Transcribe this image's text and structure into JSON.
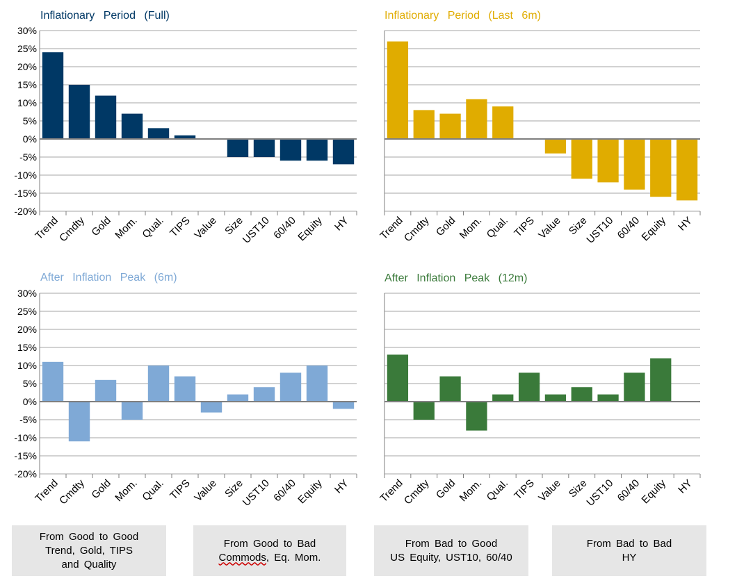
{
  "chart_data": [
    {
      "type": "bar",
      "title": "Inflationary Period (Full)",
      "color": "#003865",
      "categories": [
        "Trend",
        "Cmdty",
        "Gold",
        "Mom.",
        "Qual.",
        "TIPS",
        "Value",
        "Size",
        "UST10",
        "60/40",
        "Equity",
        "HY"
      ],
      "values": [
        24,
        15,
        12,
        7,
        3,
        1,
        0,
        -5,
        -5,
        -6,
        -6,
        -7
      ],
      "ylim": [
        -20,
        30
      ],
      "yticks": [
        "-20%",
        "-15%",
        "-10%",
        "-5%",
        "0%",
        "5%",
        "10%",
        "15%",
        "20%",
        "25%",
        "30%"
      ],
      "show_yticks": true
    },
    {
      "type": "bar",
      "title": "Inflationary Period (Last 6m)",
      "color": "#E0AC00",
      "categories": [
        "Trend",
        "Cmdty",
        "Gold",
        "Mom.",
        "Qual.",
        "TIPS",
        "Value",
        "Size",
        "UST10",
        "60/40",
        "Equity",
        "HY"
      ],
      "values": [
        27,
        8,
        7,
        11,
        9,
        0,
        -4,
        -11,
        -12,
        -14,
        -16,
        -17
      ],
      "ylim": [
        -20,
        30
      ],
      "yticks": [],
      "show_yticks": false
    },
    {
      "type": "bar",
      "title": "After Inflation Peak (6m)",
      "color": "#7FA9D6",
      "categories": [
        "Trend",
        "Cmdty",
        "Gold",
        "Mom.",
        "Qual.",
        "TIPS",
        "Value",
        "Size",
        "UST10",
        "60/40",
        "Equity",
        "HY"
      ],
      "values": [
        11,
        -11,
        6,
        -5,
        10,
        7,
        -3,
        2,
        4,
        8,
        10,
        -2
      ],
      "ylim": [
        -20,
        30
      ],
      "yticks": [
        "-20%",
        "-15%",
        "-10%",
        "-5%",
        "0%",
        "5%",
        "10%",
        "15%",
        "20%",
        "25%",
        "30%"
      ],
      "show_yticks": true
    },
    {
      "type": "bar",
      "title": "After Inflation Peak (12m)",
      "color": "#3A7A3A",
      "categories": [
        "Trend",
        "Cmdty",
        "Gold",
        "Mom.",
        "Qual.",
        "TIPS",
        "Value",
        "Size",
        "UST10",
        "60/40",
        "Equity",
        "HY"
      ],
      "values": [
        13,
        -5,
        7,
        -8,
        2,
        8,
        2,
        4,
        2,
        8,
        12,
        0
      ],
      "ylim": [
        -20,
        30
      ],
      "yticks": [],
      "show_yticks": false
    }
  ],
  "boxes": [
    {
      "lines": [
        "From Good to Good",
        "Trend, Gold, TIPS",
        "and Quality"
      ]
    },
    {
      "lines": [
        "From Good to Bad",
        "Commods, Eq. Mom."
      ]
    },
    {
      "lines": [
        "From Bad to Good",
        "US Equity, UST10, 60/40"
      ]
    },
    {
      "lines": [
        "From Bad to Bad",
        "HY"
      ]
    }
  ]
}
